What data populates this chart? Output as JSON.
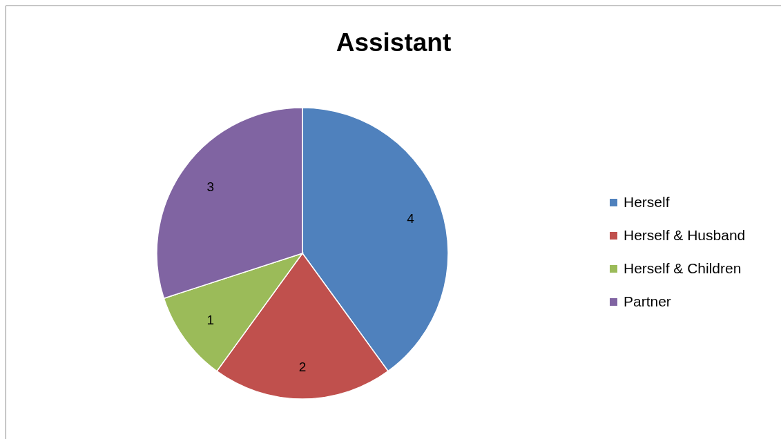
{
  "chart_data": {
    "type": "pie",
    "title": "Assistant",
    "categories": [
      "Herself",
      "Herself & Husband",
      "Herself & Children",
      "Partner"
    ],
    "values": [
      4,
      2,
      1,
      3
    ],
    "colors": [
      "#4f81bd",
      "#c0504d",
      "#9bbb59",
      "#8064a2"
    ],
    "data_labels": true,
    "legend": "right"
  }
}
